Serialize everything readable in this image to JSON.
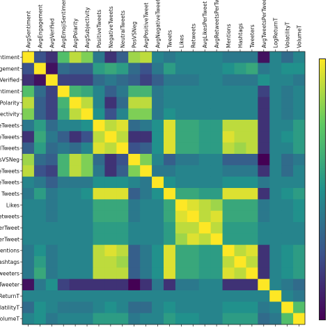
{
  "chart_data": {
    "type": "heatmap",
    "title": "",
    "colormap": "viridis",
    "colorbar": "right",
    "col_labels": [
      "AvgSentiment",
      "AvgEngagement",
      "AvgVerified",
      "AvgEmojiSentiment",
      "AvgPolarity",
      "AvgSubjectivity",
      "PositiveTweets",
      "NegativeTweets",
      "NeutralTweets",
      "PosVSNeg",
      "AvgPositiveTweet",
      "AvgNegativeTweet",
      "Tweets",
      "Likes",
      "Retweets",
      "AvgLikesPerTweet",
      "AvgRetweetsPerTweet",
      "Mentions",
      "Hashtags",
      "Tweeters",
      "AvgTweetsPerTweeter",
      "LogReturnT",
      "VolatilityT",
      "VolumeT"
    ],
    "row_labels": [
      "entiment",
      "ngagement",
      "gVerified",
      "entiment",
      "gPolarity",
      "ojectivity",
      "eTweets",
      "eTweets",
      "alTweets",
      "osVSNeg",
      "eTweets",
      "eTweets",
      "Tweets",
      "Likes",
      "Retweets",
      "PerTweet",
      "PerTweet",
      "Mentions",
      "Hashtags",
      "Tweeters",
      "rTweeter",
      "gReturnT",
      "VolatilityT",
      "VolumeT"
    ],
    "values": [
      [
        1.0,
        0.25,
        0.15,
        0.7,
        0.9,
        0.8,
        0.4,
        0.15,
        0.3,
        0.85,
        0.9,
        0.45,
        0.4,
        0.45,
        0.45,
        0.45,
        0.45,
        0.4,
        0.4,
        0.4,
        0.05,
        0.45,
        0.35,
        0.45
      ],
      [
        0.25,
        1.0,
        0.05,
        0.35,
        0.3,
        0.3,
        0.55,
        0.6,
        0.55,
        0.35,
        0.25,
        0.4,
        0.55,
        0.45,
        0.45,
        0.45,
        0.45,
        0.5,
        0.55,
        0.6,
        0.4,
        0.45,
        0.5,
        0.5
      ],
      [
        0.15,
        0.05,
        1.0,
        0.2,
        0.2,
        0.2,
        0.35,
        0.4,
        0.35,
        0.3,
        0.2,
        0.3,
        0.4,
        0.4,
        0.4,
        0.45,
        0.45,
        0.4,
        0.4,
        0.4,
        0.5,
        0.45,
        0.45,
        0.4
      ],
      [
        0.7,
        0.35,
        0.2,
        1.0,
        0.65,
        0.6,
        0.45,
        0.3,
        0.4,
        0.65,
        0.65,
        0.4,
        0.45,
        0.45,
        0.45,
        0.45,
        0.45,
        0.45,
        0.45,
        0.45,
        0.2,
        0.45,
        0.4,
        0.45
      ],
      [
        0.9,
        0.3,
        0.2,
        0.65,
        1.0,
        0.9,
        0.45,
        0.15,
        0.35,
        0.9,
        0.9,
        0.4,
        0.45,
        0.45,
        0.45,
        0.45,
        0.45,
        0.45,
        0.45,
        0.45,
        0.15,
        0.45,
        0.4,
        0.45
      ],
      [
        0.8,
        0.3,
        0.2,
        0.6,
        0.9,
        1.0,
        0.5,
        0.25,
        0.45,
        0.8,
        0.8,
        0.4,
        0.5,
        0.45,
        0.45,
        0.45,
        0.45,
        0.45,
        0.45,
        0.45,
        0.15,
        0.45,
        0.4,
        0.45
      ],
      [
        0.4,
        0.55,
        0.35,
        0.45,
        0.45,
        0.5,
        1.0,
        0.9,
        0.95,
        0.35,
        0.4,
        0.5,
        0.95,
        0.6,
        0.6,
        0.55,
        0.55,
        0.9,
        0.9,
        0.9,
        0.15,
        0.45,
        0.45,
        0.55
      ],
      [
        0.15,
        0.6,
        0.4,
        0.3,
        0.15,
        0.25,
        0.9,
        1.0,
        0.9,
        0.15,
        0.15,
        0.5,
        0.95,
        0.6,
        0.6,
        0.55,
        0.55,
        0.95,
        0.9,
        0.9,
        0.15,
        0.45,
        0.5,
        0.55
      ],
      [
        0.3,
        0.55,
        0.35,
        0.4,
        0.35,
        0.45,
        0.95,
        0.9,
        1.0,
        0.25,
        0.3,
        0.5,
        0.95,
        0.6,
        0.6,
        0.55,
        0.55,
        0.9,
        0.85,
        0.9,
        0.15,
        0.45,
        0.45,
        0.55
      ],
      [
        0.85,
        0.35,
        0.3,
        0.65,
        0.9,
        0.8,
        0.35,
        0.15,
        0.25,
        1.0,
        0.8,
        0.45,
        0.3,
        0.4,
        0.4,
        0.45,
        0.45,
        0.3,
        0.3,
        0.3,
        0.0,
        0.45,
        0.35,
        0.4
      ],
      [
        0.9,
        0.25,
        0.2,
        0.65,
        0.9,
        0.8,
        0.4,
        0.15,
        0.3,
        0.8,
        1.0,
        0.4,
        0.4,
        0.45,
        0.45,
        0.45,
        0.45,
        0.4,
        0.4,
        0.4,
        0.15,
        0.45,
        0.35,
        0.45
      ],
      [
        0.45,
        0.4,
        0.3,
        0.4,
        0.4,
        0.4,
        0.5,
        0.5,
        0.5,
        0.45,
        0.4,
        1.0,
        0.5,
        0.45,
        0.45,
        0.45,
        0.45,
        0.5,
        0.5,
        0.5,
        0.4,
        0.45,
        0.45,
        0.45
      ],
      [
        0.4,
        0.55,
        0.4,
        0.45,
        0.45,
        0.5,
        0.95,
        0.95,
        0.95,
        0.3,
        0.4,
        0.5,
        1.0,
        0.6,
        0.6,
        0.55,
        0.55,
        0.95,
        0.95,
        0.95,
        0.15,
        0.45,
        0.5,
        0.55
      ],
      [
        0.45,
        0.45,
        0.4,
        0.45,
        0.45,
        0.45,
        0.6,
        0.6,
        0.6,
        0.4,
        0.45,
        0.45,
        0.6,
        1.0,
        0.95,
        0.9,
        0.85,
        0.6,
        0.6,
        0.6,
        0.4,
        0.45,
        0.45,
        0.5
      ],
      [
        0.45,
        0.45,
        0.4,
        0.45,
        0.45,
        0.45,
        0.6,
        0.6,
        0.6,
        0.4,
        0.45,
        0.45,
        0.6,
        0.95,
        1.0,
        0.9,
        0.95,
        0.6,
        0.6,
        0.6,
        0.4,
        0.45,
        0.45,
        0.5
      ],
      [
        0.45,
        0.45,
        0.45,
        0.45,
        0.45,
        0.45,
        0.55,
        0.55,
        0.55,
        0.45,
        0.45,
        0.45,
        0.55,
        0.9,
        0.9,
        1.0,
        0.9,
        0.55,
        0.55,
        0.55,
        0.45,
        0.45,
        0.45,
        0.45
      ],
      [
        0.45,
        0.45,
        0.45,
        0.45,
        0.45,
        0.45,
        0.55,
        0.55,
        0.55,
        0.45,
        0.45,
        0.45,
        0.55,
        0.85,
        0.95,
        0.9,
        1.0,
        0.55,
        0.55,
        0.55,
        0.45,
        0.45,
        0.45,
        0.45
      ],
      [
        0.4,
        0.5,
        0.4,
        0.45,
        0.45,
        0.45,
        0.9,
        0.95,
        0.9,
        0.3,
        0.4,
        0.5,
        0.95,
        0.6,
        0.6,
        0.55,
        0.55,
        1.0,
        0.9,
        0.95,
        0.15,
        0.45,
        0.5,
        0.55
      ],
      [
        0.4,
        0.55,
        0.4,
        0.45,
        0.45,
        0.45,
        0.9,
        0.9,
        0.85,
        0.3,
        0.4,
        0.5,
        0.95,
        0.6,
        0.6,
        0.55,
        0.55,
        0.9,
        1.0,
        0.9,
        0.15,
        0.45,
        0.5,
        0.55
      ],
      [
        0.4,
        0.6,
        0.4,
        0.45,
        0.45,
        0.45,
        0.9,
        0.9,
        0.9,
        0.3,
        0.4,
        0.5,
        0.95,
        0.6,
        0.6,
        0.55,
        0.55,
        0.95,
        0.9,
        1.0,
        0.15,
        0.45,
        0.5,
        0.55
      ],
      [
        0.05,
        0.4,
        0.5,
        0.2,
        0.15,
        0.15,
        0.15,
        0.15,
        0.15,
        0.0,
        0.15,
        0.4,
        0.15,
        0.4,
        0.4,
        0.45,
        0.45,
        0.15,
        0.15,
        0.15,
        1.0,
        0.45,
        0.4,
        0.35
      ],
      [
        0.45,
        0.45,
        0.45,
        0.45,
        0.45,
        0.45,
        0.45,
        0.45,
        0.45,
        0.45,
        0.45,
        0.45,
        0.45,
        0.45,
        0.45,
        0.45,
        0.45,
        0.45,
        0.45,
        0.45,
        0.45,
        1.0,
        0.45,
        0.4
      ],
      [
        0.35,
        0.5,
        0.45,
        0.4,
        0.4,
        0.4,
        0.45,
        0.5,
        0.45,
        0.35,
        0.35,
        0.45,
        0.5,
        0.45,
        0.45,
        0.45,
        0.45,
        0.5,
        0.5,
        0.5,
        0.4,
        0.45,
        1.0,
        0.7
      ],
      [
        0.45,
        0.5,
        0.4,
        0.45,
        0.45,
        0.45,
        0.55,
        0.55,
        0.55,
        0.4,
        0.45,
        0.45,
        0.55,
        0.5,
        0.5,
        0.45,
        0.45,
        0.55,
        0.55,
        0.55,
        0.35,
        0.4,
        0.7,
        1.0
      ]
    ]
  }
}
